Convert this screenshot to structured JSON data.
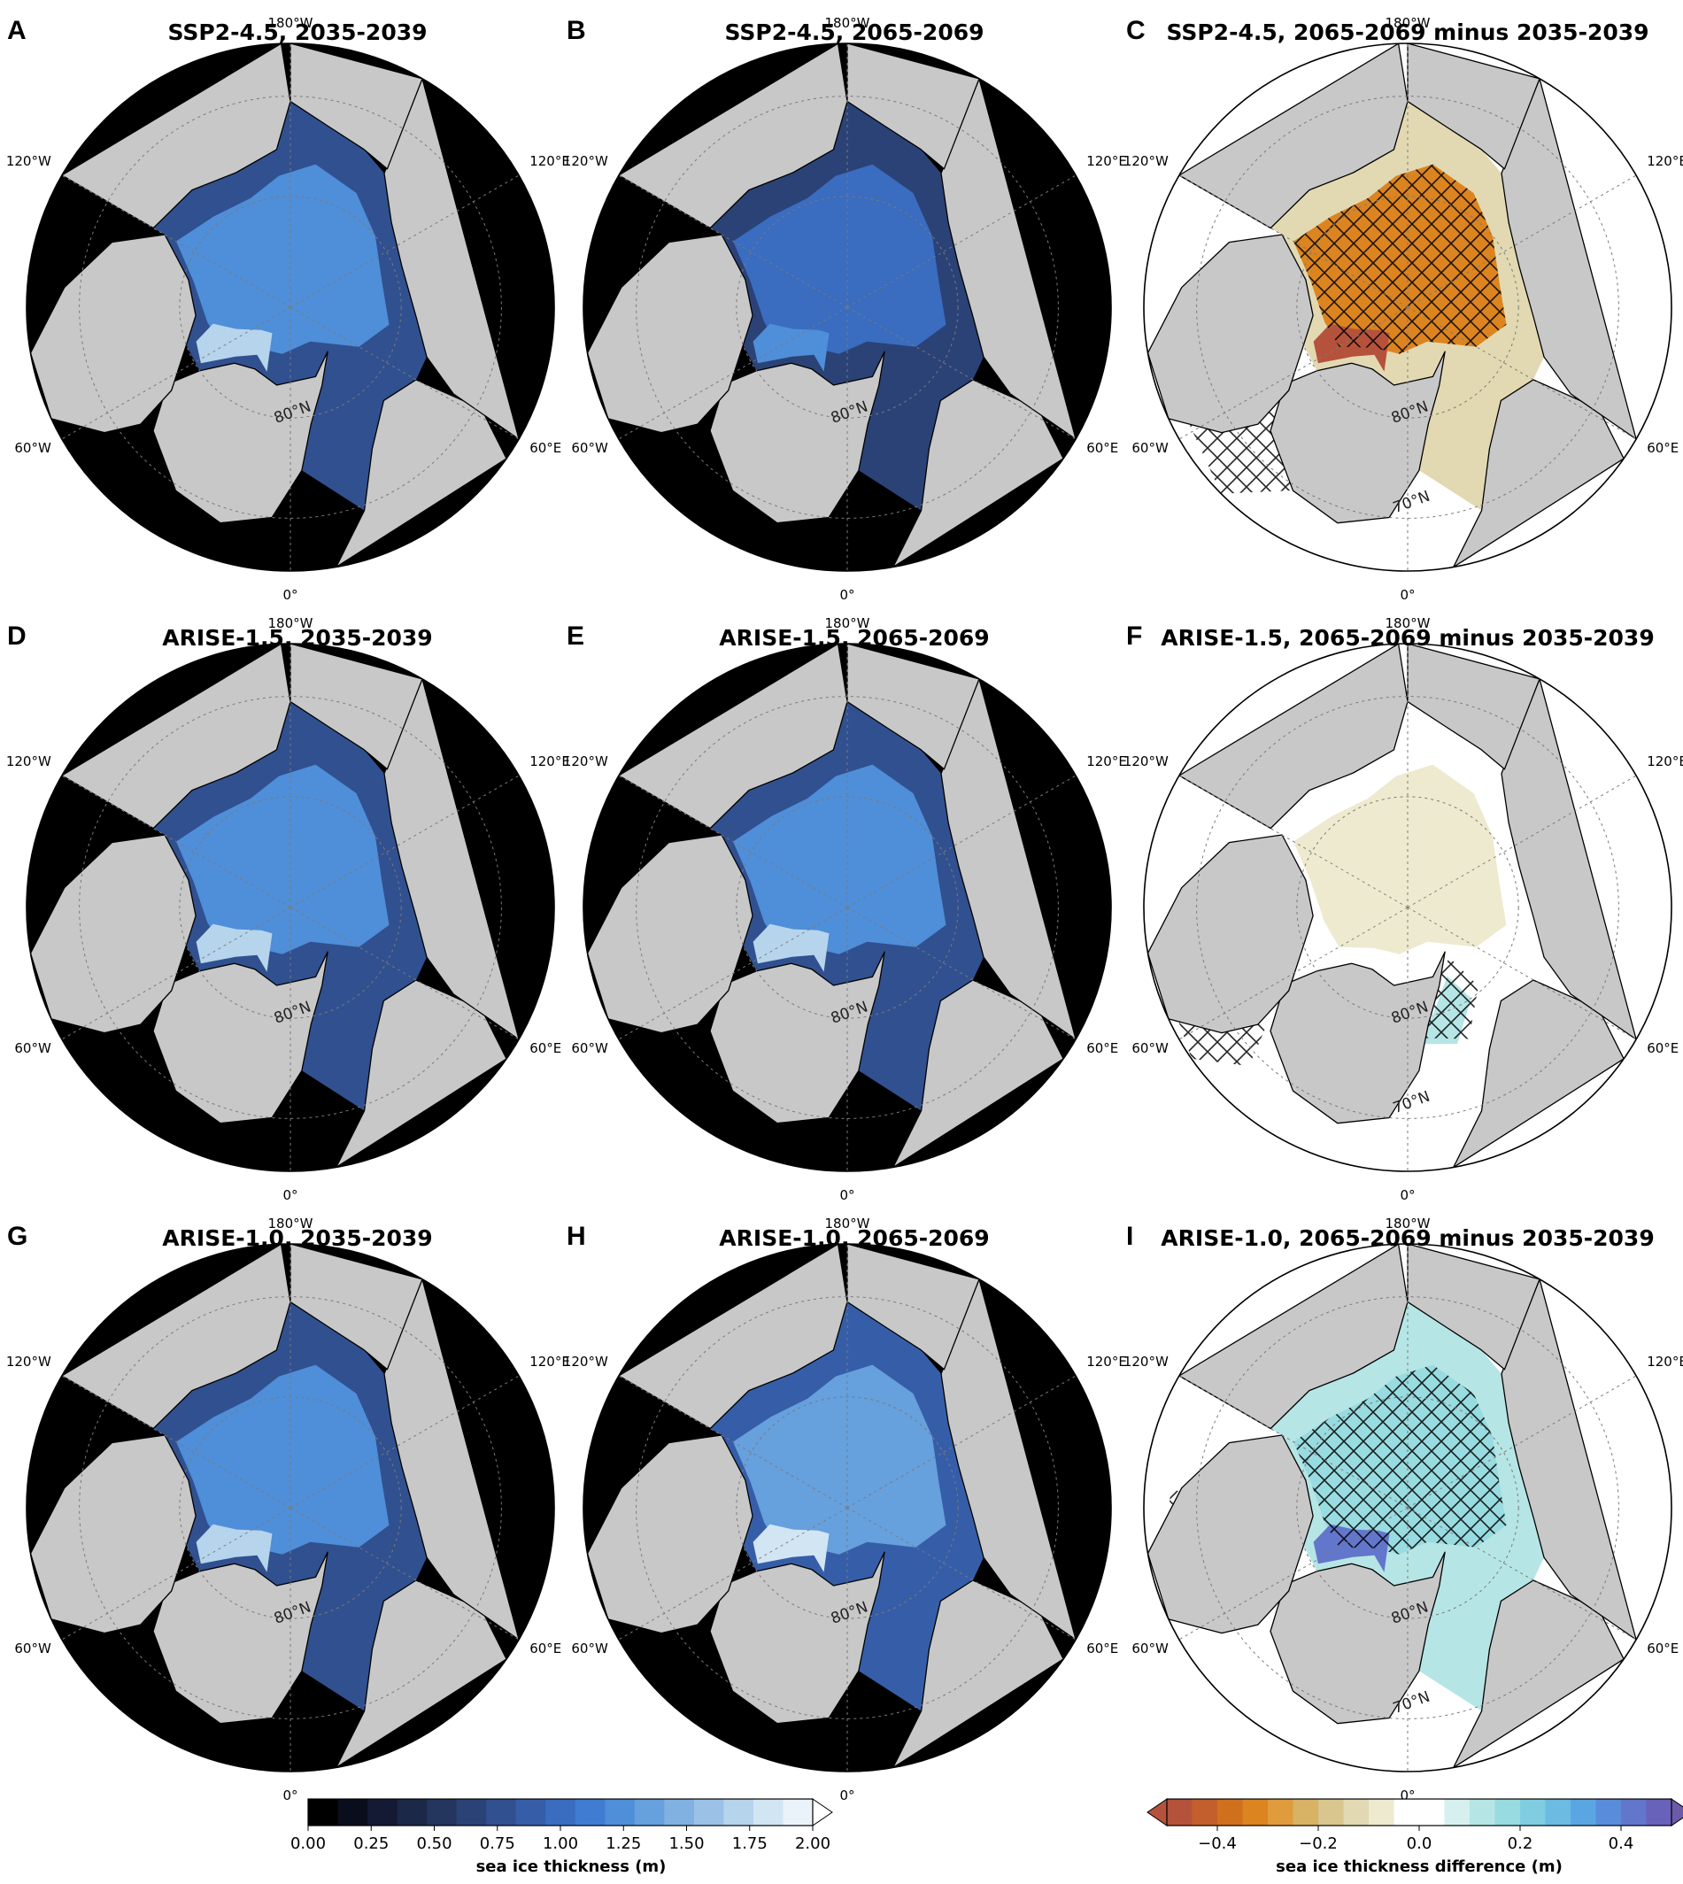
{
  "figure": {
    "panels": [
      {
        "letter": "A",
        "title": "SSP2-4.5, 2035-2039",
        "kind": "thickness",
        "ice": "medium",
        "lat_label": "80°N"
      },
      {
        "letter": "B",
        "title": "SSP2-4.5, 2065-2069",
        "kind": "thickness",
        "ice": "thin",
        "lat_label": "80°N"
      },
      {
        "letter": "C",
        "title": "SSP2-4.5, 2065-2069 minus 2035-2039",
        "kind": "difference",
        "diff": "strong_loss",
        "lat_label": "80°N",
        "lat_label2": "70°N"
      },
      {
        "letter": "D",
        "title": "ARISE-1.5, 2035-2039",
        "kind": "thickness",
        "ice": "medium",
        "lat_label": "80°N"
      },
      {
        "letter": "E",
        "title": "ARISE-1.5, 2065-2069",
        "kind": "thickness",
        "ice": "medium",
        "lat_label": "80°N"
      },
      {
        "letter": "F",
        "title": "ARISE-1.5, 2065-2069 minus 2035-2039",
        "kind": "difference",
        "diff": "weak",
        "lat_label": "80°N",
        "lat_label2": "70°N"
      },
      {
        "letter": "G",
        "title": "ARISE-1.0, 2035-2039",
        "kind": "thickness",
        "ice": "medium",
        "lat_label": "80°N"
      },
      {
        "letter": "H",
        "title": "ARISE-1.0, 2065-2069",
        "kind": "thickness",
        "ice": "thick",
        "lat_label": "80°N"
      },
      {
        "letter": "I",
        "title": "ARISE-1.0, 2065-2069 minus 2035-2039",
        "kind": "difference",
        "diff": "gain",
        "lat_label": "80°N",
        "lat_label2": "70°N"
      }
    ],
    "longitude_labels": {
      "top": "180°W",
      "upper_left": "120°W",
      "upper_right": "120°E",
      "lower_left": "60°W",
      "lower_right": "60°E",
      "bottom": "0°"
    },
    "colorbars": [
      {
        "label": "sea ice thickness (m)",
        "ticks": [
          "0.00",
          "0.25",
          "0.50",
          "0.75",
          "1.00",
          "1.25",
          "1.50",
          "1.75",
          "2.00"
        ],
        "colors": [
          "#000000",
          "#0a0d1c",
          "#141a33",
          "#1c2848",
          "#24355e",
          "#2b4276",
          "#31508f",
          "#365ea8",
          "#3a6cc0",
          "#3f7cd2",
          "#4f8ed8",
          "#66a0dd",
          "#80b1e1",
          "#9bc2e6",
          "#b6d4ec",
          "#d2e5f3",
          "#ebf3fa"
        ],
        "extend_color": "#ffffff"
      },
      {
        "label": "sea ice thickness difference (m)",
        "ticks": [
          "−0.4",
          "−0.2",
          "0.0",
          "0.2",
          "0.4"
        ],
        "colors": [
          "#b5523c",
          "#c25f2c",
          "#d0701c",
          "#db8420",
          "#e09b3c",
          "#d8b265",
          "#d9c58e",
          "#e2d9b2",
          "#eeeacf",
          "#ffffff",
          "#ffffff",
          "#d6f0ef",
          "#b6e5e5",
          "#98dbe0",
          "#80cde2",
          "#6bbbe3",
          "#5aa6e3",
          "#5a8cdc",
          "#6276cc",
          "#6862ba"
        ],
        "extend_low": "#b5523c",
        "extend_high": "#6a5aa8"
      }
    ],
    "colors": {
      "land": "#c8c8c8",
      "coast": "#000000",
      "grid": "#7a7a7a"
    }
  }
}
